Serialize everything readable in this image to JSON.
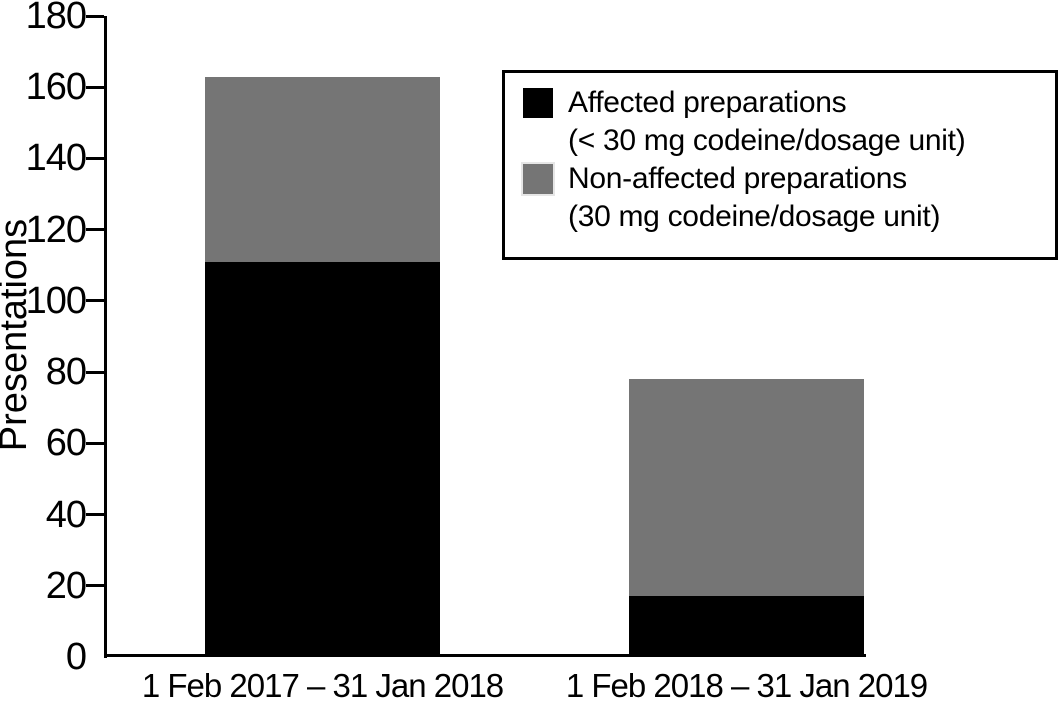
{
  "figure": {
    "background": "#ffffff",
    "axis_color": "#000000"
  },
  "chart_data": {
    "type": "bar",
    "stacked": true,
    "title": "",
    "xlabel": "",
    "ylabel": "Presentations",
    "ylim": [
      0,
      180
    ],
    "yticks": [
      0,
      20,
      40,
      60,
      80,
      100,
      120,
      140,
      160,
      180
    ],
    "grid": false,
    "categories": [
      "1 Feb 2017 – 31 Jan 2018",
      "1 Feb 2018 – 31 Jan 2019"
    ],
    "series": [
      {
        "name": "Affected preparations (< 30 mg codeine/dosage unit)",
        "color": "#000000",
        "values": [
          111,
          17
        ]
      },
      {
        "name": "Non-affected preparations (30 mg codeine/dosage unit)",
        "color": "#757575",
        "values": [
          52,
          61
        ]
      }
    ],
    "legend": {
      "position": "upper-right",
      "entries": [
        {
          "label": "Affected preparations",
          "sublabel": "(< 30 mg codeine/dosage unit)",
          "color": "#000000"
        },
        {
          "label": "Non-affected preparations",
          "sublabel": "(30 mg codeine/dosage unit)",
          "color": "#757575"
        }
      ]
    }
  }
}
